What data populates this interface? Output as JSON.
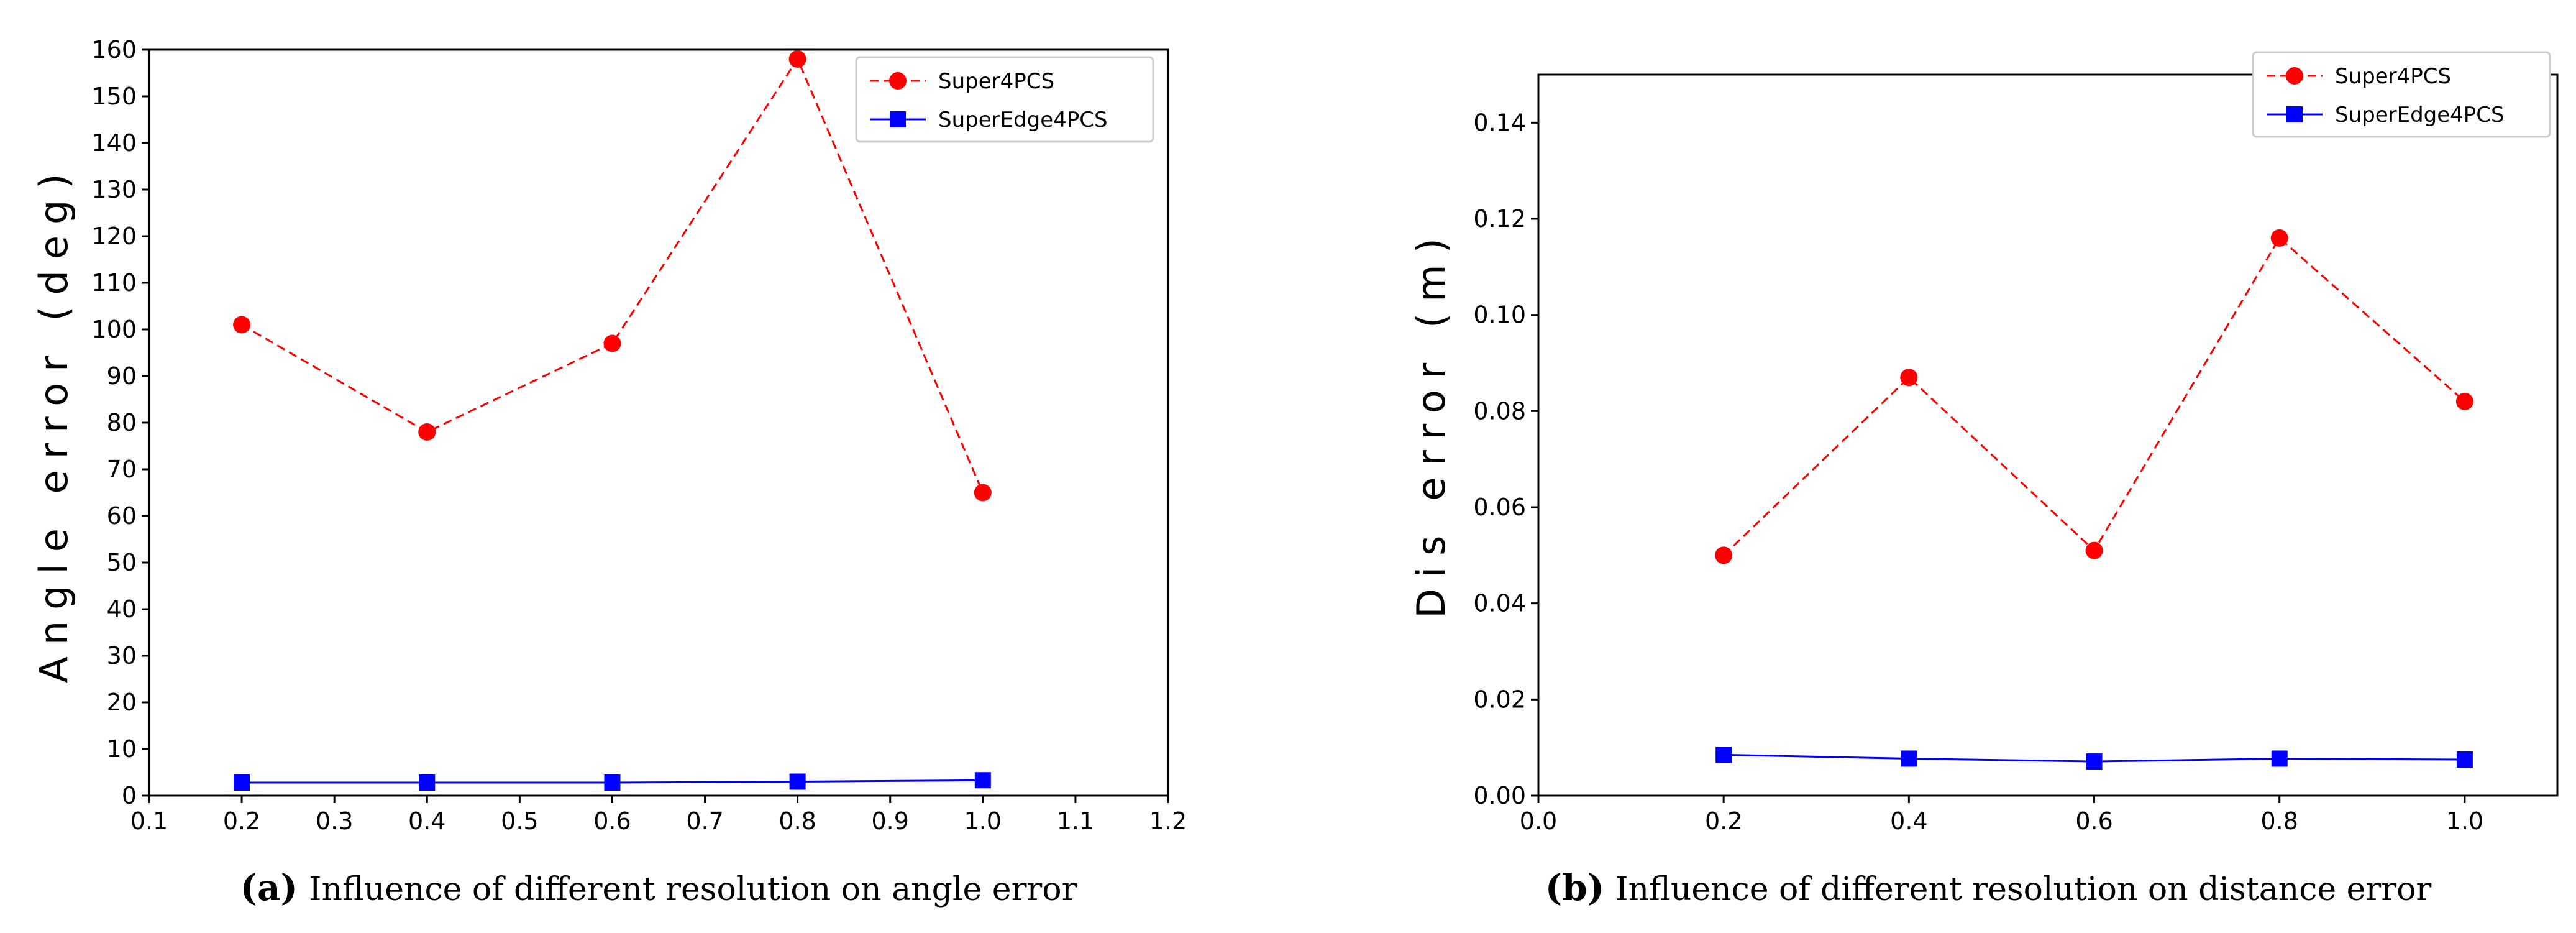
{
  "chart_data": [
    {
      "type": "line",
      "panel": "a",
      "caption_tag": "(a)",
      "caption": "Influence of different resolution on angle error",
      "xlabel": "",
      "ylabel": "Angle error (deg)",
      "xlim": [
        0.1,
        1.2
      ],
      "ylim": [
        0,
        160
      ],
      "xticks": [
        0.1,
        0.2,
        0.3,
        0.4,
        0.5,
        0.6,
        0.7,
        0.8,
        0.9,
        1.0,
        1.1,
        1.2
      ],
      "xtick_labels": [
        "0.1",
        "0.2",
        "0.3",
        "0.4",
        "0.5",
        "0.6",
        "0.7",
        "0.8",
        "0.9",
        "1.0",
        "1.1",
        "1.2"
      ],
      "yticks": [
        0,
        10,
        20,
        30,
        40,
        50,
        60,
        70,
        80,
        90,
        100,
        110,
        120,
        130,
        140,
        150,
        160
      ],
      "ytick_labels": [
        "0",
        "10",
        "20",
        "30",
        "40",
        "50",
        "60",
        "70",
        "80",
        "90",
        "100",
        "110",
        "120",
        "130",
        "140",
        "150",
        "160"
      ],
      "x": [
        0.2,
        0.4,
        0.6,
        0.8,
        1.0
      ],
      "series": [
        {
          "name": "Super4PCS",
          "values": [
            101,
            78,
            97,
            158,
            65
          ],
          "color": "#ff0000",
          "dash": true,
          "marker": "circle"
        },
        {
          "name": "SuperEdge4PCS",
          "values": [
            2.8,
            2.8,
            2.8,
            3.0,
            3.3
          ],
          "color": "#0000ff",
          "dash": false,
          "marker": "square"
        }
      ],
      "legend": "top-right",
      "grid": false
    },
    {
      "type": "line",
      "panel": "b",
      "caption_tag": "(b)",
      "caption": "Influence of different resolution on distance error",
      "xlabel": "",
      "ylabel": "Dis error (m)",
      "xlim": [
        0.0,
        1.1
      ],
      "ylim": [
        0,
        0.15
      ],
      "xticks": [
        0.0,
        0.2,
        0.4,
        0.6,
        0.8,
        1.0
      ],
      "xtick_labels": [
        "0.0",
        "0.2",
        "0.4",
        "0.6",
        "0.8",
        "1.0"
      ],
      "yticks": [
        0,
        0.02,
        0.04,
        0.06,
        0.08,
        0.1,
        0.12,
        0.14
      ],
      "ytick_labels": [
        "0.00",
        "0.02",
        "0.04",
        "0.06",
        "0.08",
        "0.10",
        "0.12",
        "0.14"
      ],
      "x": [
        0.2,
        0.4,
        0.6,
        0.8,
        1.0
      ],
      "series": [
        {
          "name": "Super4PCS",
          "values": [
            0.05,
            0.087,
            0.051,
            0.116,
            0.082
          ],
          "color": "#ff0000",
          "dash": true,
          "marker": "circle"
        },
        {
          "name": "SuperEdge4PCS",
          "values": [
            0.0085,
            0.0077,
            0.0071,
            0.0077,
            0.0075
          ],
          "color": "#0000ff",
          "dash": false,
          "marker": "square"
        }
      ],
      "legend": "top-right",
      "grid": false
    }
  ]
}
